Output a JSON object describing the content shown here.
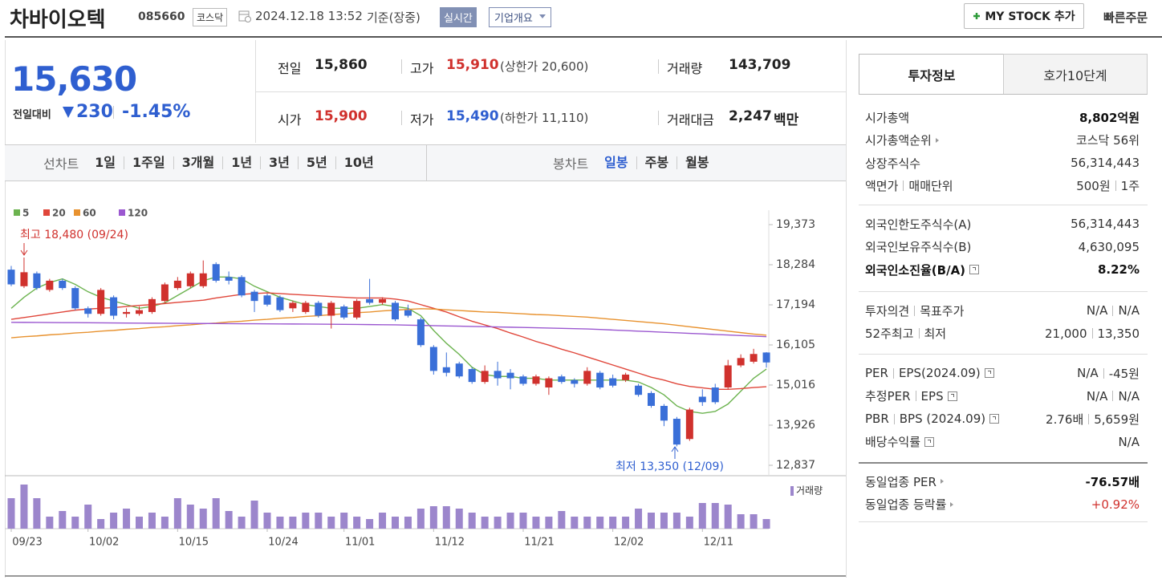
{
  "header": {
    "name": "차바이오텍",
    "code": "085660",
    "market": "코스닥",
    "datetime": "2024.12.18 13:52",
    "basis": "기준(장중)",
    "realtime": "실시간",
    "company_info": "기업개요",
    "my_stock": "MY STOCK 추가",
    "quick_order": "빠른주문"
  },
  "price": {
    "current": "15,630",
    "change_label": "전일대비",
    "change": "230",
    "change_rate": "-1.45%"
  },
  "quote": {
    "prev": {
      "label": "전일",
      "value": "15,860"
    },
    "high": {
      "label": "고가",
      "value": "15,910",
      "note": "(상한가 20,600)"
    },
    "volume": {
      "label": "거래량",
      "value": "143,709"
    },
    "open": {
      "label": "시가",
      "value": "15,900"
    },
    "low": {
      "label": "저가",
      "value": "15,490",
      "note": "(하한가 11,110)"
    },
    "amount": {
      "label": "거래대금",
      "value": "2,247",
      "unit": "백만"
    }
  },
  "period_tabs": {
    "label": "선차트",
    "items": [
      "1일",
      "1주일",
      "3개월",
      "1년",
      "3년",
      "5년",
      "10년"
    ]
  },
  "candle_tabs": {
    "label": "봉차트",
    "items": [
      "일봉",
      "주봉",
      "월봉"
    ]
  },
  "chart_data": {
    "type": "candlestick",
    "categories": [
      "09/23",
      null,
      null,
      null,
      null,
      null,
      "10/02",
      null,
      null,
      null,
      null,
      null,
      null,
      "10/15",
      null,
      null,
      null,
      null,
      null,
      null,
      "10/24",
      null,
      null,
      null,
      null,
      null,
      "11/01",
      null,
      null,
      null,
      null,
      null,
      null,
      "11/12",
      null,
      null,
      null,
      null,
      null,
      null,
      "11/21",
      null,
      null,
      null,
      null,
      null,
      null,
      "12/02",
      null,
      null,
      null,
      null,
      null,
      null,
      "12/11",
      null,
      null,
      null,
      null,
      null
    ],
    "open": [
      18150,
      17700,
      18050,
      17600,
      17850,
      17650,
      17100,
      16950,
      17400,
      16950,
      16950,
      17000,
      17300,
      17650,
      17700,
      17700,
      18300,
      17950,
      17950,
      17550,
      17450,
      17400,
      17100,
      17000,
      17250,
      16900,
      17150,
      16850,
      17350,
      17250,
      17250,
      17050,
      16800,
      16050,
      15500,
      15600,
      15450,
      15100,
      15400,
      15350,
      15250,
      15050,
      14950,
      15250,
      15150,
      15050,
      15350,
      15200,
      15150,
      15000,
      14800,
      14450,
      14100,
      13550,
      14700,
      14950,
      14950,
      15550,
      15650,
      15900
    ],
    "high": [
      18250,
      18480,
      18100,
      17900,
      17900,
      17700,
      17150,
      17650,
      17450,
      17100,
      17150,
      17400,
      17800,
      17950,
      18100,
      18400,
      18350,
      18100,
      18000,
      17600,
      17500,
      17450,
      17300,
      17300,
      17300,
      17300,
      17200,
      17350,
      17900,
      17400,
      17300,
      17200,
      16850,
      16100,
      15900,
      15650,
      15500,
      15550,
      15650,
      15450,
      15300,
      15300,
      15250,
      15300,
      15200,
      15500,
      15400,
      15300,
      15350,
      15050,
      14850,
      14500,
      14150,
      14400,
      14900,
      15050,
      15700,
      15850,
      16000,
      15910
    ],
    "low": [
      17700,
      17650,
      17600,
      17550,
      17600,
      17050,
      16850,
      16900,
      16800,
      16850,
      16900,
      16950,
      17250,
      17600,
      17650,
      17650,
      17800,
      17750,
      17400,
      17000,
      17150,
      17000,
      17000,
      16950,
      16850,
      16550,
      16800,
      16800,
      17200,
      17200,
      16750,
      16850,
      16050,
      15300,
      15250,
      15200,
      15050,
      15050,
      15000,
      14900,
      15000,
      15000,
      14750,
      15050,
      14950,
      15000,
      14900,
      14950,
      15100,
      14700,
      14400,
      13900,
      13350,
      13500,
      14450,
      14500,
      14900,
      15500,
      15600,
      15490
    ],
    "close": [
      17750,
      18080,
      17650,
      17850,
      17650,
      17100,
      16950,
      17600,
      16900,
      17000,
      17050,
      17350,
      17750,
      17850,
      18050,
      18050,
      17850,
      17850,
      17450,
      17300,
      17200,
      17050,
      17250,
      17250,
      16900,
      17250,
      16850,
      17300,
      17250,
      17350,
      16800,
      16900,
      16100,
      15400,
      15350,
      15250,
      15100,
      15400,
      15200,
      15200,
      15050,
      15250,
      15200,
      15100,
      15050,
      15400,
      14950,
      15000,
      15300,
      14750,
      14450,
      14050,
      13400,
      14350,
      14550,
      14550,
      15550,
      15750,
      15860,
      15630
    ],
    "volume": [
      456000,
      660000,
      456000,
      180000,
      264000,
      180000,
      360000,
      144000,
      240000,
      300000,
      180000,
      240000,
      180000,
      456000,
      360000,
      300000,
      456000,
      264000,
      180000,
      420000,
      240000,
      180000,
      180000,
      240000,
      240000,
      180000,
      240000,
      180000,
      144000,
      240000,
      180000,
      180000,
      300000,
      336000,
      336000,
      300000,
      240000,
      180000,
      180000,
      240000,
      240000,
      180000,
      180000,
      264000,
      180000,
      180000,
      180000,
      180000,
      180000,
      300000,
      240000,
      240000,
      240000,
      180000,
      384000,
      384000,
      360000,
      216000,
      216000,
      143709
    ],
    "up_color": "#d0312d",
    "down_color": "#3a6fd8",
    "volume_color": "#9c86cc",
    "series": [
      {
        "name": "5",
        "color": "#6cb34f",
        "values": [
          17100,
          17400,
          17650,
          17800,
          17900,
          17750,
          17550,
          17400,
          17300,
          17200,
          17100,
          17150,
          17250,
          17450,
          17650,
          17850,
          17950,
          17950,
          17900,
          17700,
          17550,
          17400,
          17300,
          17200,
          17150,
          17100,
          17100,
          17100,
          17150,
          17200,
          17150,
          17100,
          16900,
          16500,
          16150,
          15850,
          15500,
          15300,
          15250,
          15250,
          15200,
          15200,
          15150,
          15150,
          15150,
          15150,
          15150,
          15150,
          15150,
          15100,
          14950,
          14750,
          14450,
          14300,
          14250,
          14300,
          14500,
          14850,
          15200,
          15450
        ]
      },
      {
        "name": "20",
        "color": "#e0463a",
        "values": [
          16800,
          16850,
          16900,
          16950,
          17000,
          17050,
          17080,
          17100,
          17120,
          17150,
          17180,
          17200,
          17230,
          17260,
          17290,
          17320,
          17380,
          17430,
          17480,
          17500,
          17520,
          17500,
          17480,
          17460,
          17440,
          17420,
          17400,
          17380,
          17380,
          17380,
          17350,
          17300,
          17200,
          17100,
          17000,
          16870,
          16750,
          16650,
          16550,
          16430,
          16320,
          16200,
          16100,
          15990,
          15890,
          15780,
          15670,
          15560,
          15450,
          15340,
          15230,
          15150,
          15050,
          14980,
          14940,
          14900,
          14900,
          14920,
          14950,
          14970
        ]
      },
      {
        "name": "60",
        "color": "#e8922f",
        "values": [
          16300,
          16330,
          16350,
          16380,
          16400,
          16430,
          16450,
          16480,
          16500,
          16530,
          16550,
          16580,
          16600,
          16630,
          16650,
          16680,
          16700,
          16730,
          16750,
          16780,
          16800,
          16830,
          16850,
          16880,
          16900,
          16930,
          16950,
          16980,
          17000,
          17030,
          17050,
          17070,
          17090,
          17080,
          17060,
          17040,
          17020,
          17000,
          16990,
          16970,
          16950,
          16930,
          16920,
          16900,
          16880,
          16860,
          16830,
          16800,
          16770,
          16740,
          16710,
          16680,
          16640,
          16600,
          16560,
          16520,
          16480,
          16440,
          16400,
          16370
        ]
      },
      {
        "name": "120",
        "color": "#9b58d0",
        "values": [
          16720,
          16718,
          16716,
          16714,
          16712,
          16710,
          16708,
          16705,
          16702,
          16700,
          16698,
          16696,
          16694,
          16692,
          16690,
          16688,
          16686,
          16684,
          16682,
          16680,
          16678,
          16676,
          16674,
          16672,
          16670,
          16668,
          16665,
          16662,
          16658,
          16654,
          16650,
          16643,
          16636,
          16629,
          16622,
          16615,
          16608,
          16601,
          16594,
          16587,
          16580,
          16572,
          16564,
          16556,
          16548,
          16540,
          16525,
          16510,
          16495,
          16480,
          16465,
          16450,
          16435,
          16420,
          16405,
          16390,
          16375,
          16360,
          16345,
          16330
        ]
      }
    ],
    "ylim": [
      12619,
      19700
    ],
    "yticks": [
      {
        "value": 12837,
        "label": "12,837"
      },
      {
        "value": 13926,
        "label": "13,926"
      },
      {
        "value": 15016,
        "label": "15,016"
      },
      {
        "value": 16105,
        "label": "16,105"
      },
      {
        "value": 17194,
        "label": "17,194"
      },
      {
        "value": 18284,
        "label": "18,284"
      },
      {
        "value": 19373,
        "label": "19,373"
      }
    ],
    "high_label": "최고 18,480 (09/24)",
    "low_label": "최저 13,350 (12/09)",
    "volume_label": "거래량"
  },
  "invest": {
    "tabs": [
      "투자정보",
      "호가10단계"
    ],
    "groups": [
      [
        {
          "label": [
            "시가총액"
          ],
          "value": [
            "8,802억원"
          ]
        },
        {
          "label": [
            "시가총액순위"
          ],
          "value": [
            "코스닥 56위"
          ]
        },
        {
          "label": [
            "상장주식수"
          ],
          "value": [
            "56,314,443"
          ]
        },
        {
          "label": [
            "액면가",
            "매매단위"
          ],
          "value": [
            "500원",
            "1주"
          ]
        }
      ],
      [
        {
          "label": [
            "외국인한도주식수(A)"
          ],
          "value": [
            "56,314,443"
          ]
        },
        {
          "label": [
            "외국인보유주식수(B)"
          ],
          "value": [
            "4,630,095"
          ]
        },
        {
          "label": [
            "외국인소진율(B/A)"
          ],
          "value": [
            "8.22%"
          ]
        }
      ],
      [
        {
          "label": [
            "투자의견",
            "목표주가"
          ],
          "value": [
            "N/A",
            "N/A"
          ]
        },
        {
          "label": [
            "52주최고",
            "최저"
          ],
          "value": [
            "21,000",
            "13,350"
          ]
        }
      ],
      [
        {
          "label": [
            "PER",
            "EPS(2024.09)"
          ],
          "value": [
            "N/A",
            "-45원"
          ]
        },
        {
          "label": [
            "추정PER",
            "EPS"
          ],
          "value": [
            "N/A",
            "N/A"
          ]
        },
        {
          "label": [
            "PBR",
            "BPS (2024.09)"
          ],
          "value": [
            "2.76배",
            "5,659원"
          ]
        },
        {
          "label": [
            "배당수익률"
          ],
          "value": [
            "N/A"
          ]
        }
      ],
      [
        {
          "label": [
            "동일업종 PER"
          ],
          "value": [
            "-76.57배"
          ]
        },
        {
          "label": [
            "동일업종 등락률"
          ],
          "value": [
            "+0.92%"
          ]
        }
      ]
    ]
  }
}
